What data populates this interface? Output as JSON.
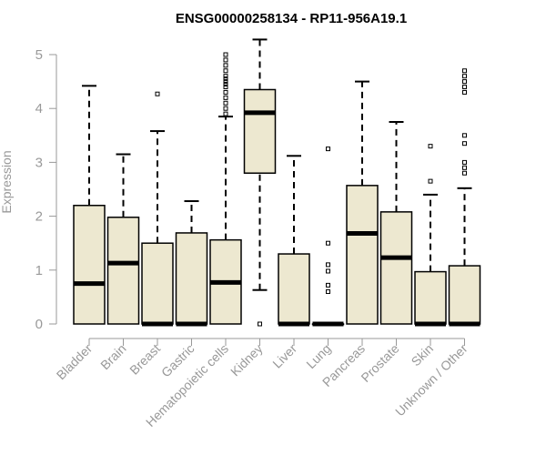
{
  "chart_data": {
    "type": "box",
    "title": "ENSG00000258134 - RP11-956A19.1",
    "xlabel": "",
    "ylabel": "Expression",
    "ylim": [
      0,
      5.2
    ],
    "yticks": [
      0,
      1,
      2,
      3,
      4,
      5
    ],
    "colors": {
      "box_fill": "#ede8d0",
      "stroke": "#000000",
      "axis": "#999999"
    },
    "categories": [
      "Bladder",
      "Brain",
      "Breast",
      "Gastric",
      "Hematopoietic cells",
      "Kidney",
      "Liver",
      "Lung",
      "Pancreas",
      "Prostate",
      "Skin",
      "Unknown / Other"
    ],
    "boxes": [
      {
        "name": "Bladder",
        "min": 0,
        "q1": 0,
        "median": 0.75,
        "q3": 2.2,
        "max": 4.42,
        "outliers": []
      },
      {
        "name": "Brain",
        "min": 0,
        "q1": 0,
        "median": 1.13,
        "q3": 1.98,
        "max": 3.15,
        "outliers": []
      },
      {
        "name": "Breast",
        "min": 0,
        "q1": 0,
        "median": 0,
        "q3": 1.5,
        "max": 3.58,
        "outliers": [
          4.27
        ]
      },
      {
        "name": "Gastric",
        "min": 0,
        "q1": 0,
        "median": 0,
        "q3": 1.69,
        "max": 2.28,
        "outliers": []
      },
      {
        "name": "Hematopoietic cells",
        "min": 0,
        "q1": 0,
        "median": 0.77,
        "q3": 1.56,
        "max": 3.85,
        "outliers": [
          3.9,
          4.0,
          4.1,
          4.2,
          4.3,
          4.4,
          4.45,
          4.5,
          4.55,
          4.6,
          4.7,
          4.8,
          4.9,
          5.0
        ]
      },
      {
        "name": "Kidney",
        "min": 0.63,
        "q1": 2.8,
        "median": 3.92,
        "q3": 4.35,
        "max": 5.28,
        "outliers": [
          0
        ]
      },
      {
        "name": "Liver",
        "min": 0,
        "q1": 0,
        "median": 0,
        "q3": 1.3,
        "max": 3.12,
        "outliers": []
      },
      {
        "name": "Lung",
        "min": 0,
        "q1": 0,
        "median": 0,
        "q3": 0,
        "max": 0,
        "outliers": [
          0.6,
          0.72,
          0.98,
          1.1,
          1.5,
          3.25
        ]
      },
      {
        "name": "Pancreas",
        "min": 0,
        "q1": 0,
        "median": 1.68,
        "q3": 2.57,
        "max": 4.5,
        "outliers": []
      },
      {
        "name": "Prostate",
        "min": 0,
        "q1": 0,
        "median": 1.23,
        "q3": 2.08,
        "max": 3.75,
        "outliers": []
      },
      {
        "name": "Skin",
        "min": 0,
        "q1": 0,
        "median": 0,
        "q3": 0.97,
        "max": 2.4,
        "outliers": [
          2.65,
          3.3
        ]
      },
      {
        "name": "Unknown / Other",
        "min": 0,
        "q1": 0,
        "median": 0,
        "q3": 1.08,
        "max": 2.52,
        "outliers": [
          2.8,
          2.9,
          3.0,
          3.35,
          3.5,
          4.3,
          4.4,
          4.5,
          4.6,
          4.7
        ]
      }
    ]
  }
}
